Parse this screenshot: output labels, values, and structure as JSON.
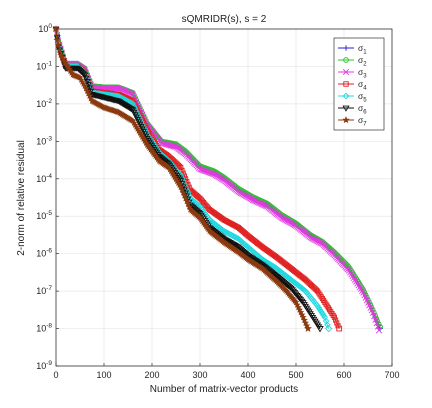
{
  "chart_data": {
    "type": "line",
    "title": "sQMRIDR(s),  s = 2",
    "xlabel": "Number of matrix-vector products",
    "ylabel": "2-norm of relative residual",
    "xlim": [
      0,
      700
    ],
    "ylim_log10": [
      -9,
      0
    ],
    "yscale": "log",
    "grid": true,
    "legend_position": "top-right",
    "x_ticks": [
      "0",
      "100",
      "200",
      "300",
      "400",
      "500",
      "600",
      "700"
    ],
    "y_ticks": [
      {
        "base": "10",
        "exp": "0"
      },
      {
        "base": "10",
        "exp": "-1"
      },
      {
        "base": "10",
        "exp": "-2"
      },
      {
        "base": "10",
        "exp": "-3"
      },
      {
        "base": "10",
        "exp": "-4"
      },
      {
        "base": "10",
        "exp": "-5"
      },
      {
        "base": "10",
        "exp": "-6"
      },
      {
        "base": "10",
        "exp": "-7"
      },
      {
        "base": "10",
        "exp": "-8"
      },
      {
        "base": "10",
        "exp": "-9"
      }
    ],
    "series": [
      {
        "name": "σ",
        "sub": "1",
        "color": "#1f1fd0",
        "marker": "plus",
        "points": [
          [
            0,
            1
          ],
          [
            5,
            0.5
          ],
          [
            20,
            0.12
          ],
          [
            45,
            0.12
          ],
          [
            60,
            0.09
          ],
          [
            75,
            0.03
          ],
          [
            100,
            0.028
          ],
          [
            130,
            0.028
          ],
          [
            160,
            0.02
          ],
          [
            190,
            0.003
          ],
          [
            220,
            0.001
          ],
          [
            250,
            0.0008
          ],
          [
            270,
            0.0005
          ],
          [
            300,
            0.0002
          ],
          [
            330,
            0.00015
          ],
          [
            350,
            0.0001
          ],
          [
            380,
            5e-05
          ],
          [
            410,
            3e-05
          ],
          [
            440,
            2e-05
          ],
          [
            470,
            1e-05
          ],
          [
            500,
            6e-06
          ],
          [
            530,
            3e-06
          ],
          [
            555,
            2e-06
          ],
          [
            580,
            1e-06
          ],
          [
            610,
            4e-07
          ],
          [
            640,
            1e-07
          ],
          [
            660,
            3e-08
          ],
          [
            675,
            1e-08
          ]
        ]
      },
      {
        "name": "σ",
        "sub": "2",
        "color": "#2bc42b",
        "marker": "circle",
        "points": [
          [
            0,
            1
          ],
          [
            5,
            0.5
          ],
          [
            20,
            0.12
          ],
          [
            45,
            0.12
          ],
          [
            60,
            0.09
          ],
          [
            75,
            0.03
          ],
          [
            100,
            0.028
          ],
          [
            130,
            0.028
          ],
          [
            160,
            0.02
          ],
          [
            190,
            0.003
          ],
          [
            220,
            0.001
          ],
          [
            250,
            0.00085
          ],
          [
            270,
            0.00055
          ],
          [
            300,
            0.00022
          ],
          [
            330,
            0.00016
          ],
          [
            350,
            0.00011
          ],
          [
            380,
            5.5e-05
          ],
          [
            410,
            3.3e-05
          ],
          [
            440,
            2.2e-05
          ],
          [
            470,
            1.1e-05
          ],
          [
            500,
            6.5e-06
          ],
          [
            530,
            3.2e-06
          ],
          [
            555,
            2.1e-06
          ],
          [
            580,
            1.1e-06
          ],
          [
            610,
            4.5e-07
          ],
          [
            640,
            1.1e-07
          ],
          [
            660,
            3.2e-08
          ],
          [
            675,
            1.1e-08
          ]
        ]
      },
      {
        "name": "σ",
        "sub": "3",
        "color": "#e03ae0",
        "marker": "x",
        "points": [
          [
            0,
            1
          ],
          [
            5,
            0.5
          ],
          [
            20,
            0.11
          ],
          [
            45,
            0.11
          ],
          [
            60,
            0.08
          ],
          [
            75,
            0.028
          ],
          [
            100,
            0.026
          ],
          [
            130,
            0.026
          ],
          [
            160,
            0.018
          ],
          [
            190,
            0.0028
          ],
          [
            220,
            0.0009
          ],
          [
            250,
            0.0007
          ],
          [
            270,
            0.00045
          ],
          [
            300,
            0.00018
          ],
          [
            330,
            0.00013
          ],
          [
            350,
            9e-05
          ],
          [
            380,
            4.5e-05
          ],
          [
            410,
            2.7e-05
          ],
          [
            440,
            1.8e-05
          ],
          [
            470,
            9e-06
          ],
          [
            500,
            5.5e-06
          ],
          [
            530,
            2.7e-06
          ],
          [
            555,
            1.8e-06
          ],
          [
            580,
            9e-07
          ],
          [
            610,
            3.5e-07
          ],
          [
            640,
            9e-08
          ],
          [
            660,
            2.6e-08
          ],
          [
            673,
            9e-09
          ]
        ]
      },
      {
        "name": "σ",
        "sub": "4",
        "color": "#e02020",
        "marker": "square",
        "points": [
          [
            0,
            1
          ],
          [
            5,
            0.4
          ],
          [
            20,
            0.1
          ],
          [
            45,
            0.1
          ],
          [
            60,
            0.07
          ],
          [
            75,
            0.022
          ],
          [
            100,
            0.02
          ],
          [
            130,
            0.018
          ],
          [
            160,
            0.012
          ],
          [
            190,
            0.002
          ],
          [
            215,
            0.0006
          ],
          [
            235,
            0.0004
          ],
          [
            260,
            0.0002
          ],
          [
            280,
            5e-05
          ],
          [
            300,
            3e-05
          ],
          [
            320,
            1.5e-05
          ],
          [
            350,
            8e-06
          ],
          [
            380,
            5e-06
          ],
          [
            400,
            3e-06
          ],
          [
            430,
            1.5e-06
          ],
          [
            460,
            8e-07
          ],
          [
            490,
            4e-07
          ],
          [
            520,
            2e-07
          ],
          [
            545,
            1e-07
          ],
          [
            565,
            4e-08
          ],
          [
            580,
            2e-08
          ],
          [
            590,
            1e-08
          ]
        ]
      },
      {
        "name": "σ",
        "sub": "5",
        "color": "#20d8e0",
        "marker": "diamond",
        "points": [
          [
            0,
            1
          ],
          [
            5,
            0.4
          ],
          [
            20,
            0.1
          ],
          [
            45,
            0.1
          ],
          [
            60,
            0.07
          ],
          [
            75,
            0.02
          ],
          [
            100,
            0.018
          ],
          [
            130,
            0.016
          ],
          [
            160,
            0.01
          ],
          [
            190,
            0.0015
          ],
          [
            215,
            0.0005
          ],
          [
            235,
            0.0003
          ],
          [
            260,
            0.00012
          ],
          [
            280,
            3e-05
          ],
          [
            300,
            1.8e-05
          ],
          [
            320,
            8e-06
          ],
          [
            350,
            4e-06
          ],
          [
            380,
            2.5e-06
          ],
          [
            400,
            1.5e-06
          ],
          [
            430,
            7e-07
          ],
          [
            460,
            4e-07
          ],
          [
            490,
            2e-07
          ],
          [
            520,
            1e-07
          ],
          [
            545,
            4e-08
          ],
          [
            560,
            2e-08
          ],
          [
            568,
            1e-08
          ]
        ]
      },
      {
        "name": "σ",
        "sub": "6",
        "color": "#111111",
        "marker": "triangle-down",
        "points": [
          [
            0,
            1
          ],
          [
            5,
            0.35
          ],
          [
            20,
            0.09
          ],
          [
            45,
            0.09
          ],
          [
            60,
            0.06
          ],
          [
            75,
            0.018
          ],
          [
            100,
            0.015
          ],
          [
            130,
            0.012
          ],
          [
            160,
            0.007
          ],
          [
            190,
            0.0012
          ],
          [
            215,
            0.0004
          ],
          [
            235,
            0.00025
          ],
          [
            260,
            9e-05
          ],
          [
            280,
            2e-05
          ],
          [
            300,
            1.2e-05
          ],
          [
            320,
            5e-06
          ],
          [
            350,
            2.5e-06
          ],
          [
            380,
            1.5e-06
          ],
          [
            400,
            9e-07
          ],
          [
            430,
            5e-07
          ],
          [
            460,
            2.5e-07
          ],
          [
            490,
            1.2e-07
          ],
          [
            515,
            5e-08
          ],
          [
            535,
            2e-08
          ],
          [
            550,
            1e-08
          ]
        ]
      },
      {
        "name": "σ",
        "sub": "7",
        "color": "#8b3a10",
        "marker": "star",
        "points": [
          [
            0,
            1
          ],
          [
            2,
            0.5
          ],
          [
            10,
            0.2
          ],
          [
            20,
            0.12
          ],
          [
            35,
            0.06
          ],
          [
            50,
            0.05
          ],
          [
            60,
            0.03
          ],
          [
            75,
            0.012
          ],
          [
            100,
            0.008
          ],
          [
            130,
            0.006
          ],
          [
            160,
            0.0035
          ],
          [
            190,
            0.0008
          ],
          [
            215,
            0.0003
          ],
          [
            235,
            0.0002
          ],
          [
            260,
            6e-05
          ],
          [
            280,
            1.5e-05
          ],
          [
            300,
            9e-06
          ],
          [
            320,
            4e-06
          ],
          [
            350,
            2e-06
          ],
          [
            380,
            1.1e-06
          ],
          [
            400,
            7e-07
          ],
          [
            430,
            4e-07
          ],
          [
            460,
            1.8e-07
          ],
          [
            480,
            1e-07
          ],
          [
            500,
            5e-08
          ],
          [
            515,
            2e-08
          ],
          [
            525,
            1e-08
          ]
        ]
      }
    ]
  }
}
